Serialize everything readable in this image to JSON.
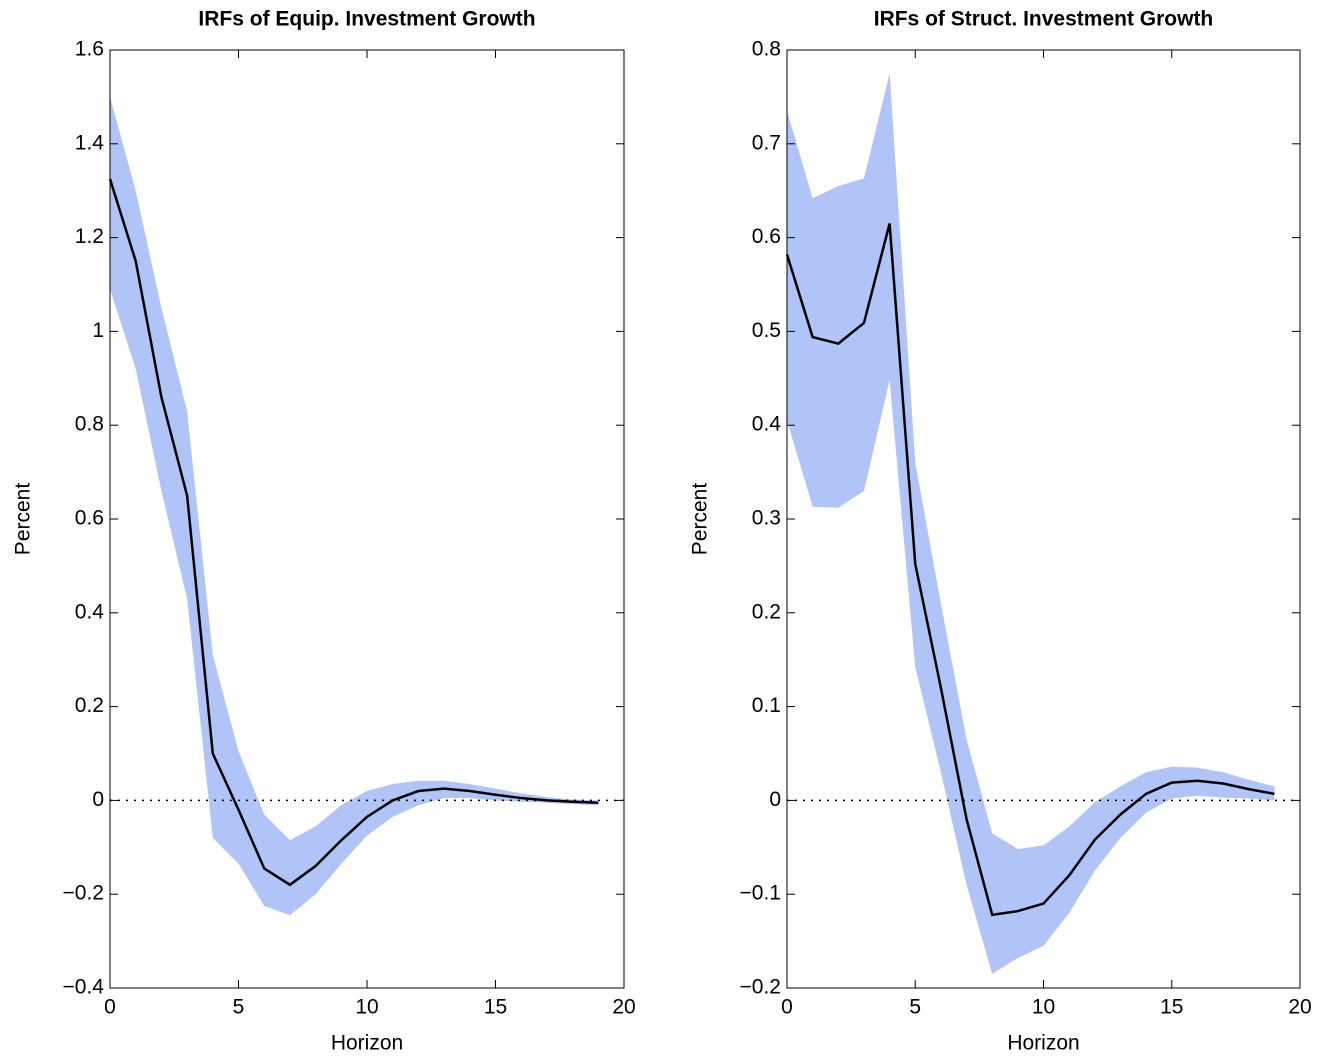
{
  "chart_data": [
    {
      "type": "line",
      "title": "IRFs of Equip. Investment Growth",
      "x_label": "Horizon",
      "y_label": "Percent",
      "x": [
        0,
        1,
        2,
        3,
        4,
        5,
        6,
        7,
        8,
        9,
        10,
        11,
        12,
        13,
        14,
        15,
        16,
        17,
        18,
        19
      ],
      "series": [
        {
          "color": "#000000",
          "values": [
            1.325,
            1.15,
            0.86,
            0.65,
            0.1,
            -0.02,
            -0.145,
            -0.18,
            -0.14,
            -0.085,
            -0.035,
            0.0,
            0.02,
            0.025,
            0.02,
            0.012,
            0.005,
            0.0,
            -0.003,
            -0.005
          ]
        }
      ],
      "band": {
        "color": "#b0c4f8",
        "upper": [
          1.5,
          1.3,
          1.05,
          0.83,
          0.31,
          0.105,
          -0.03,
          -0.085,
          -0.055,
          -0.01,
          0.02,
          0.035,
          0.042,
          0.042,
          0.035,
          0.025,
          0.015,
          0.007,
          0.002,
          0.0
        ],
        "lower": [
          1.09,
          0.92,
          0.66,
          0.43,
          -0.08,
          -0.135,
          -0.225,
          -0.245,
          -0.2,
          -0.135,
          -0.075,
          -0.035,
          -0.01,
          0.005,
          0.005,
          0.0,
          -0.003,
          -0.005,
          -0.008,
          -0.01
        ]
      },
      "zero_line": true,
      "xlim": [
        0,
        20
      ],
      "xticks": [
        0,
        5,
        10,
        15,
        20
      ],
      "ylim": [
        -0.4,
        1.6
      ],
      "yticks": [
        {
          "value": -0.4,
          "label": "−0.4"
        },
        {
          "value": -0.2,
          "label": "−0.2"
        },
        0,
        0.2,
        0.4,
        0.6,
        0.8,
        1,
        1.2,
        1.4,
        1.6
      ]
    },
    {
      "type": "line",
      "title": "IRFs of Struct. Investment Growth",
      "x_label": "Horizon",
      "y_label": "Percent",
      "x": [
        0,
        1,
        2,
        3,
        4,
        5,
        6,
        7,
        8,
        9,
        10,
        11,
        12,
        13,
        14,
        15,
        16,
        17,
        18,
        19
      ],
      "series": [
        {
          "color": "#000000",
          "values": [
            0.582,
            0.494,
            0.487,
            0.509,
            0.615,
            0.252,
            0.12,
            -0.02,
            -0.122,
            -0.118,
            -0.11,
            -0.08,
            -0.042,
            -0.015,
            0.007,
            0.019,
            0.021,
            0.018,
            0.012,
            0.007
          ]
        }
      ],
      "band": {
        "color": "#b0c4f8",
        "upper": [
          0.735,
          0.642,
          0.655,
          0.663,
          0.775,
          0.36,
          0.21,
          0.065,
          -0.035,
          -0.052,
          -0.048,
          -0.028,
          -0.002,
          0.015,
          0.03,
          0.036,
          0.035,
          0.03,
          0.022,
          0.015
        ],
        "lower": [
          0.405,
          0.313,
          0.312,
          0.33,
          0.448,
          0.142,
          0.03,
          -0.09,
          -0.185,
          -0.168,
          -0.155,
          -0.12,
          -0.075,
          -0.04,
          -0.013,
          0.002,
          0.005,
          0.003,
          0.002,
          0.0
        ]
      },
      "zero_line": true,
      "xlim": [
        0,
        20
      ],
      "xticks": [
        0,
        5,
        10,
        15,
        20
      ],
      "ylim": [
        -0.2,
        0.8
      ],
      "yticks": [
        {
          "value": -0.2,
          "label": "−0.2"
        },
        {
          "value": -0.1,
          "label": "−0.1"
        },
        0,
        0.1,
        0.2,
        0.3,
        0.4,
        0.5,
        0.6,
        0.7,
        0.8
      ]
    }
  ]
}
